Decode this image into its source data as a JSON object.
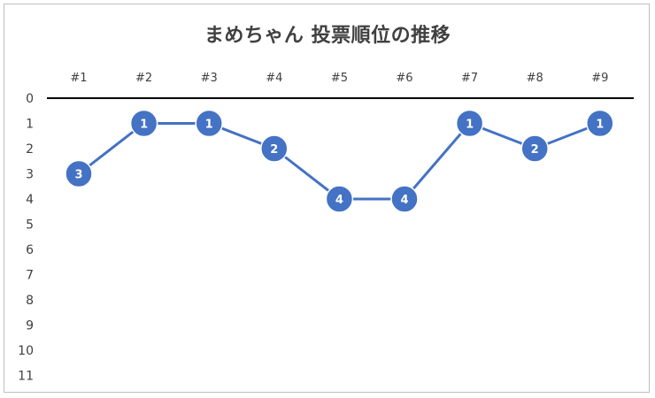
{
  "chart_data": {
    "type": "line",
    "title": "まめちゃん 投票順位の推移",
    "categories": [
      "#1",
      "#2",
      "#3",
      "#4",
      "#5",
      "#6",
      "#7",
      "#8",
      "#9"
    ],
    "series": [
      {
        "values": [
          3,
          1,
          1,
          2,
          4,
          4,
          1,
          2,
          1
        ]
      }
    ],
    "ylim": [
      0,
      11
    ],
    "yaxis_reversed": true,
    "y_ticks": [
      0,
      1,
      2,
      3,
      4,
      5,
      6,
      7,
      8,
      9,
      10,
      11
    ],
    "x_axis_position": "top",
    "data_labels": true,
    "grid": false,
    "legend": "none",
    "colors": {
      "line": "#4472c4",
      "marker": "#4472c4",
      "marker_border": "#ffffff",
      "axis": "#000000",
      "text": "#404040"
    }
  }
}
